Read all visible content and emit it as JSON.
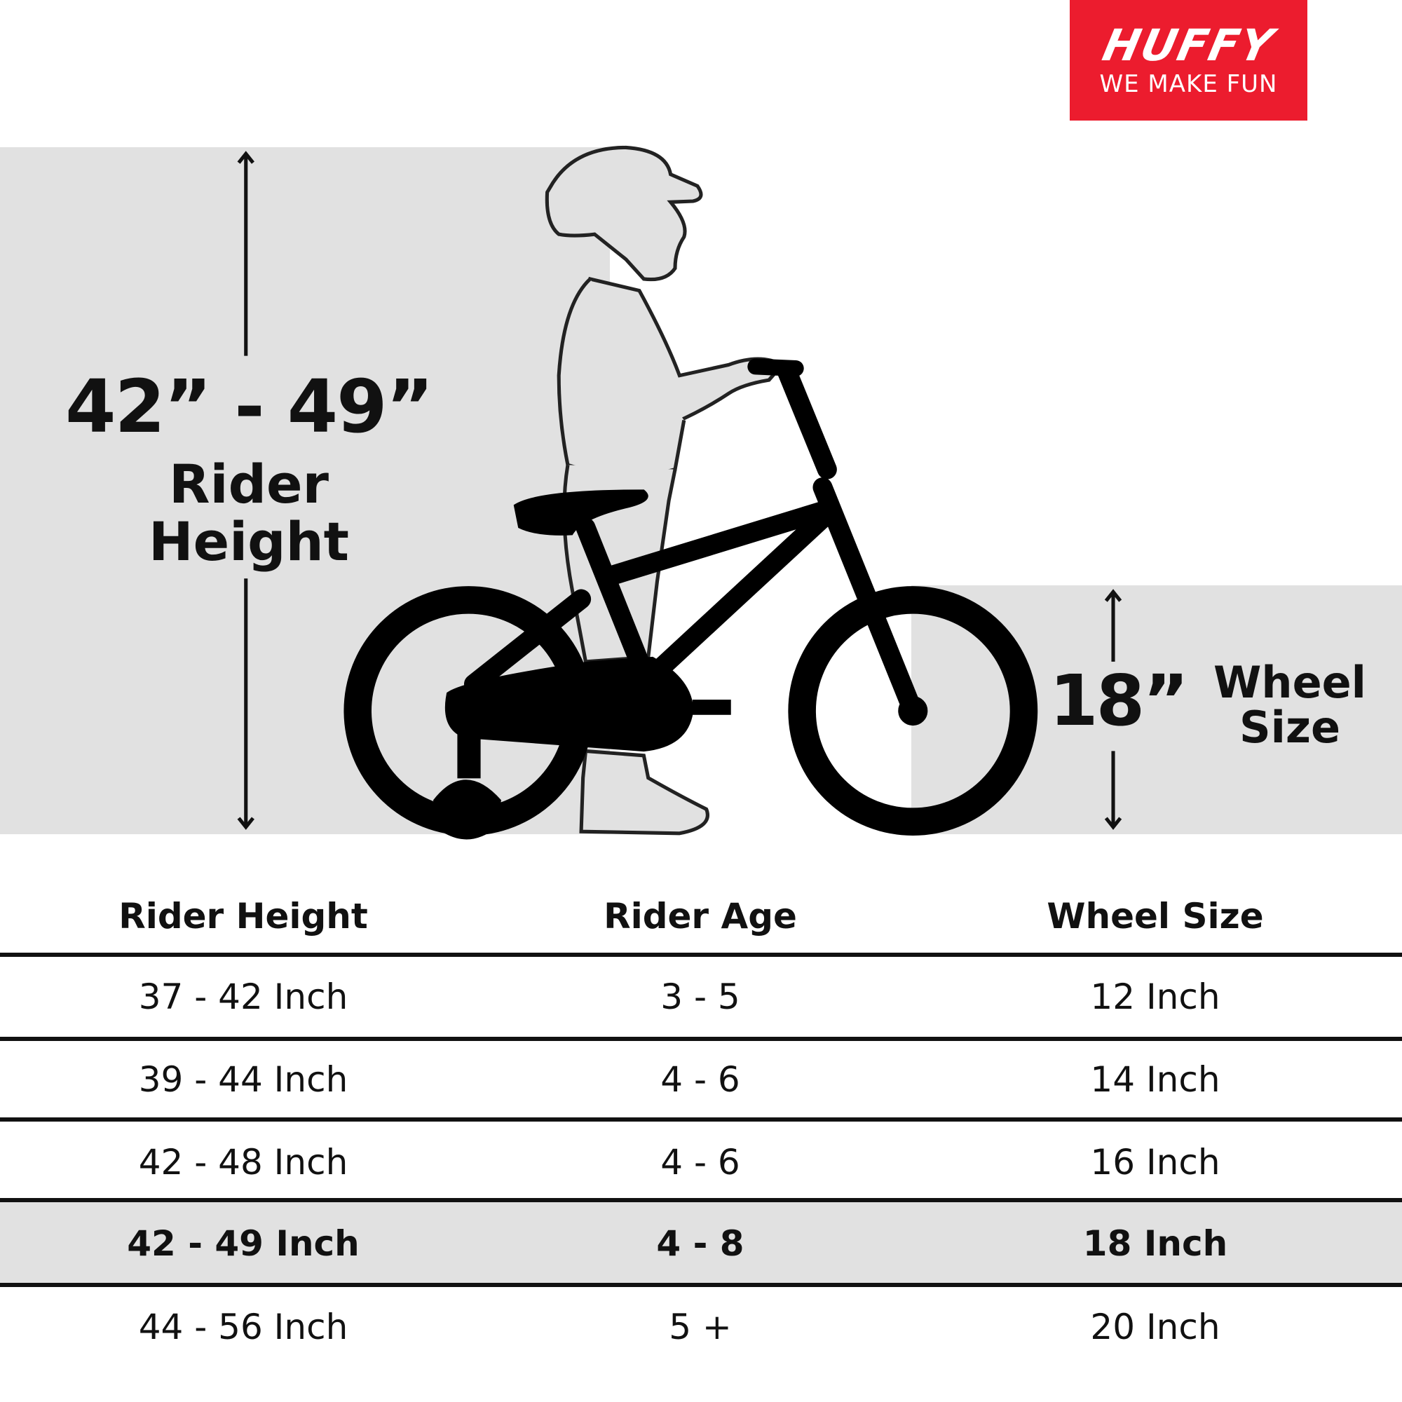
{
  "logo": {
    "brand": "HUFFY",
    "tagline": "WE MAKE FUN",
    "color": "#ec1c2e"
  },
  "illustration": {
    "rider_height_range": "42” - 49”",
    "rider_height_label": "Rider Height",
    "wheel_size_value": "18”",
    "wheel_size_label": "Wheel Size"
  },
  "table": {
    "headers": [
      "Rider Height",
      "Rider Age",
      "Wheel Size"
    ],
    "rows": [
      [
        "37 - 42 Inch",
        "3 - 5",
        "12 Inch"
      ],
      [
        "39 - 44 Inch",
        "4 - 6",
        "14 Inch"
      ],
      [
        "42 - 48 Inch",
        "4 - 6",
        "16 Inch"
      ],
      [
        "42 - 49 Inch",
        "4 - 8",
        "18 Inch"
      ],
      [
        "44 - 56 Inch",
        "5 +",
        "20 Inch"
      ]
    ],
    "highlighted_row": 3,
    "highlight_color": "#e1e1e1"
  }
}
